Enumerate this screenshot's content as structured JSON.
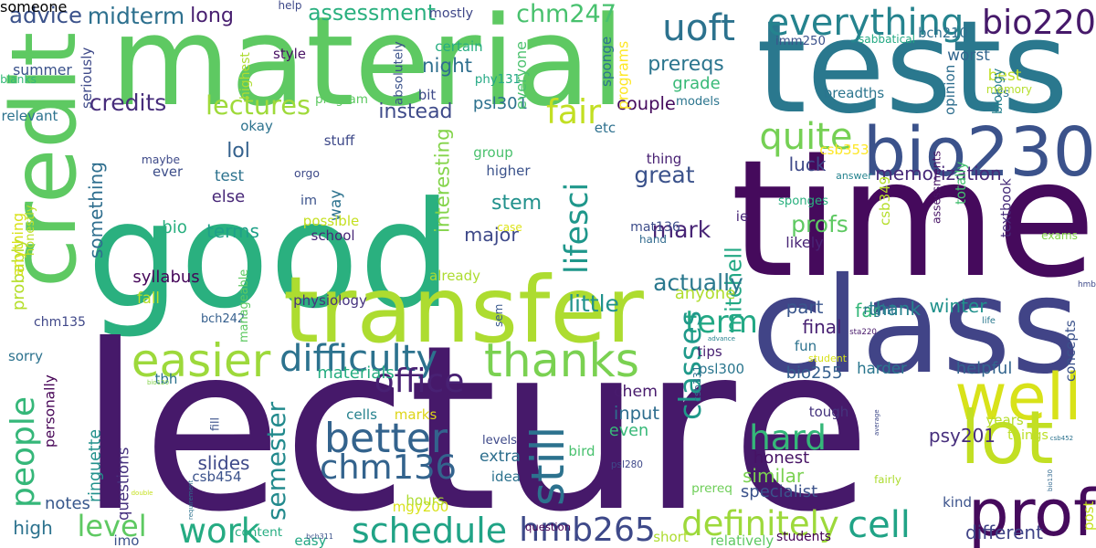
{
  "palette": [
    "#440154",
    "#472d7b",
    "#3b528b",
    "#2c728e",
    "#21918c",
    "#28ae80",
    "#5ec962",
    "#addc30",
    "#fde725"
  ],
  "words": [
    {
      "text": "good",
      "color": "#2ab07f"
    },
    {
      "text": "lecture",
      "color": "#46196a"
    },
    {
      "text": "material",
      "color": "#5ec962"
    },
    {
      "text": "tests",
      "color": "#2a788e"
    },
    {
      "text": "time",
      "color": "#450a5c"
    },
    {
      "text": "credit",
      "color": "#5ec962"
    },
    {
      "text": "class",
      "color": "#414487"
    },
    {
      "text": "transfer",
      "color": "#addc30"
    },
    {
      "text": "bio230",
      "color": "#3b528b"
    },
    {
      "text": "well",
      "color": "#d8e219"
    },
    {
      "text": "lot",
      "color": "#c2df23"
    },
    {
      "text": "prof",
      "color": "#450a5c"
    },
    {
      "text": "easier",
      "color": "#9dd93b"
    },
    {
      "text": "thanks",
      "color": "#7ad151"
    },
    {
      "text": "difficulty",
      "color": "#2c728e"
    },
    {
      "text": "everything",
      "color": "#25838e"
    },
    {
      "text": "uoft",
      "color": "#2c728e"
    },
    {
      "text": "bio220",
      "color": "#46196a"
    },
    {
      "text": "better",
      "color": "#33638d"
    },
    {
      "text": "chm136",
      "color": "#33638d"
    },
    {
      "text": "schedule",
      "color": "#20a386"
    },
    {
      "text": "hmb265",
      "color": "#3e4989"
    },
    {
      "text": "definitely",
      "color": "#9dd93b"
    },
    {
      "text": "work",
      "color": "#25ab82"
    },
    {
      "text": "level",
      "color": "#5ec962"
    },
    {
      "text": "still",
      "color": "#2c728e"
    },
    {
      "text": "quite",
      "color": "#75d054"
    },
    {
      "text": "fair",
      "color": "#c2df23"
    },
    {
      "text": "hard",
      "color": "#35b779"
    },
    {
      "text": "term",
      "color": "#22a884"
    },
    {
      "text": "cell",
      "color": "#20a386"
    },
    {
      "text": "classes",
      "color": "#1f998a"
    },
    {
      "text": "semester",
      "color": "#238a8d"
    },
    {
      "text": "people",
      "color": "#35b779"
    },
    {
      "text": "lifesci",
      "color": "#1f978b"
    },
    {
      "text": "office",
      "color": "#482173"
    },
    {
      "text": "lectures",
      "color": "#9fda3a"
    },
    {
      "text": "assessment",
      "color": "#2ab07f"
    },
    {
      "text": "chm247",
      "color": "#48c16e"
    },
    {
      "text": "advice",
      "color": "#3b528b"
    },
    {
      "text": "midterm",
      "color": "#2d708e"
    },
    {
      "text": "long",
      "color": "#481f70"
    },
    {
      "text": "credits",
      "color": "#472d7b"
    },
    {
      "text": "night",
      "color": "#2e6f8e"
    },
    {
      "text": "instead",
      "color": "#3e4a89"
    },
    {
      "text": "psl301",
      "color": "#2d718e"
    },
    {
      "text": "summer",
      "color": "#3b528b"
    },
    {
      "text": "prereqs",
      "color": "#2b758e"
    },
    {
      "text": "great",
      "color": "#3b528b"
    },
    {
      "text": "profs",
      "color": "#5ec962"
    },
    {
      "text": "mitchell",
      "color": "#22a884"
    },
    {
      "text": "memorization",
      "color": "#482979"
    },
    {
      "text": "winter",
      "color": "#21918c"
    },
    {
      "text": "thank",
      "color": "#26828e"
    },
    {
      "text": "final",
      "color": "#482173"
    },
    {
      "text": "far",
      "color": "#35b779"
    },
    {
      "text": "stem",
      "color": "#21918c"
    },
    {
      "text": "major",
      "color": "#3e4989"
    },
    {
      "text": "mark",
      "color": "#482576"
    },
    {
      "text": "interesting",
      "color": "#84d44b"
    },
    {
      "text": "luck",
      "color": "#3e4989"
    },
    {
      "text": "likely",
      "color": "#482475"
    },
    {
      "text": "little",
      "color": "#20928c"
    },
    {
      "text": "actually",
      "color": "#2a788e"
    },
    {
      "text": "part",
      "color": "#39558c"
    },
    {
      "text": "materials",
      "color": "#26ad81"
    },
    {
      "text": "bio255",
      "color": "#355f8d"
    },
    {
      "text": "similar",
      "color": "#7ad151"
    },
    {
      "text": "specialist",
      "color": "#3b528b"
    },
    {
      "text": "psy201",
      "color": "#472f7d"
    },
    {
      "text": "years",
      "color": "#b5de2b"
    },
    {
      "text": "different",
      "color": "#414487"
    },
    {
      "text": "slides",
      "color": "#3e4989"
    },
    {
      "text": "questions",
      "color": "#46327e"
    },
    {
      "text": "ringuette",
      "color": "#21918c"
    },
    {
      "text": "notes",
      "color": "#38588c"
    },
    {
      "text": "high",
      "color": "#2c728e"
    },
    {
      "text": "easy",
      "color": "#22a884"
    },
    {
      "text": "bio",
      "color": "#29af7f"
    },
    {
      "text": "terms",
      "color": "#1fa188"
    },
    {
      "text": "lol",
      "color": "#34618d"
    },
    {
      "text": "fall",
      "color": "#b8de29"
    },
    {
      "text": "something",
      "color": "#2e6e8e"
    },
    {
      "text": "probably",
      "color": "#b5de2b"
    },
    {
      "text": "way",
      "color": "#2c728e"
    },
    {
      "text": "im",
      "color": "#3b528b"
    },
    {
      "text": "stuff",
      "color": "#3e4989"
    },
    {
      "text": "else",
      "color": "#482878"
    },
    {
      "text": "test",
      "color": "#2c728e"
    },
    {
      "text": "chem",
      "color": "#481b6d"
    },
    {
      "text": "input",
      "color": "#2e6d8e"
    },
    {
      "text": "even",
      "color": "#37b878"
    },
    {
      "text": "honest",
      "color": "#471365"
    },
    {
      "text": "mgy200",
      "color": "#d8e219"
    },
    {
      "text": "harder",
      "color": "#2a768e"
    },
    {
      "text": "helpful",
      "color": "#32648e"
    },
    {
      "text": "anyone",
      "color": "#b0dd2f"
    },
    {
      "text": "csb331",
      "color": "#2c728e"
    },
    {
      "text": "psl300",
      "color": "#2a768e"
    },
    {
      "text": "csb349",
      "color": "#b5de2b"
    },
    {
      "text": "hmb",
      "color": "#3e4989"
    },
    {
      "text": "couple",
      "color": "#460b5e"
    },
    {
      "text": "sponge",
      "color": "#2c728e"
    },
    {
      "text": "grade",
      "color": "#38b977"
    },
    {
      "text": "worst",
      "color": "#31668e"
    },
    {
      "text": "best",
      "color": "#c0df25"
    },
    {
      "text": "physiology",
      "color": "#46337e"
    },
    {
      "text": "syllabus",
      "color": "#46075a"
    },
    {
      "text": "chm135",
      "color": "#3f4788"
    },
    {
      "text": "bch242",
      "color": "#355f8d"
    },
    {
      "text": "maybe",
      "color": "#3e4a89"
    },
    {
      "text": "ever",
      "color": "#3d4e8a"
    },
    {
      "text": "possible",
      "color": "#c5e021"
    },
    {
      "text": "school",
      "color": "#482677"
    },
    {
      "text": "case",
      "color": "#dde318"
    },
    {
      "text": "group",
      "color": "#4ac16d"
    },
    {
      "text": "higher",
      "color": "#3b528b"
    },
    {
      "text": "orgo",
      "color": "#3e4a89"
    },
    {
      "text": "mat136",
      "color": "#3d4d8a"
    },
    {
      "text": "hand",
      "color": "#306a8e"
    },
    {
      "text": "thing",
      "color": "#482173"
    },
    {
      "text": "csb353",
      "color": "#fde725"
    },
    {
      "text": "answer",
      "color": "#25838e"
    },
    {
      "text": "sponges",
      "color": "#2ab07f"
    },
    {
      "text": "ie",
      "color": "#482677"
    },
    {
      "text": "textbook",
      "color": "#472d7b"
    },
    {
      "text": "exams",
      "color": "#84d44b"
    },
    {
      "text": "assessments",
      "color": "#481567"
    },
    {
      "text": "totally",
      "color": "#45bf70"
    },
    {
      "text": "breadths",
      "color": "#2b758e"
    },
    {
      "text": "opinion",
      "color": "#2e6e8e"
    },
    {
      "text": "biology",
      "color": "#26828e"
    },
    {
      "text": "imm250",
      "color": "#3b528b"
    },
    {
      "text": "sabbatical",
      "color": "#23a983"
    },
    {
      "text": "bch210",
      "color": "#2e6f8e"
    },
    {
      "text": "vs",
      "color": "#2c728e"
    },
    {
      "text": "memory",
      "color": "#b5de2b"
    },
    {
      "text": "models",
      "color": "#2b758e"
    },
    {
      "text": "certain",
      "color": "#26ad81"
    },
    {
      "text": "help",
      "color": "#3e4989"
    },
    {
      "text": "mostly",
      "color": "#3f4788"
    },
    {
      "text": "programs",
      "color": "#fde725"
    },
    {
      "text": "everyone",
      "color": "#4ac16d"
    },
    {
      "text": "etc",
      "color": "#2d708e"
    },
    {
      "text": "phy131",
      "color": "#22a884"
    },
    {
      "text": "bit",
      "color": "#3e4989"
    },
    {
      "text": "absolutely",
      "color": "#3b528b"
    },
    {
      "text": "program",
      "color": "#5ec962"
    },
    {
      "text": "style",
      "color": "#471063"
    },
    {
      "text": "highest",
      "color": "#addc30"
    },
    {
      "text": "seriously",
      "color": "#3e4989"
    },
    {
      "text": "blanks",
      "color": "#35b779"
    },
    {
      "text": "relevant",
      "color": "#2c728e"
    },
    {
      "text": "okay",
      "color": "#2c728e"
    },
    {
      "text": "anything",
      "color": "#d8e219"
    },
    {
      "text": "honestly",
      "color": "#bddf26"
    },
    {
      "text": "manageable",
      "color": "#5ec962"
    },
    {
      "text": "already",
      "color": "#addc30"
    },
    {
      "text": "sem",
      "color": "#38588c"
    },
    {
      "text": "sorry",
      "color": "#2c728e"
    },
    {
      "text": "personally",
      "color": "#440154"
    },
    {
      "text": "tbh",
      "color": "#2c728e"
    },
    {
      "text": "bio120",
      "color": "#84d44b"
    },
    {
      "text": "fill",
      "color": "#3b528b"
    },
    {
      "text": "cells",
      "color": "#26828e"
    },
    {
      "text": "marks",
      "color": "#ddd518"
    },
    {
      "text": "levels",
      "color": "#3e4989"
    },
    {
      "text": "extra",
      "color": "#2e6f8e"
    },
    {
      "text": "bird",
      "color": "#48c16e"
    },
    {
      "text": "psl280",
      "color": "#3e4989"
    },
    {
      "text": "idea",
      "color": "#2c728e"
    },
    {
      "text": "tough",
      "color": "#45337d"
    },
    {
      "text": "advance",
      "color": "#26828e"
    },
    {
      "text": "tips",
      "color": "#482173"
    },
    {
      "text": "fun",
      "color": "#2c728e"
    },
    {
      "text": "student",
      "color": "#d8e219"
    },
    {
      "text": "right",
      "color": "#2c728e"
    },
    {
      "text": "sta220",
      "color": "#48196b"
    },
    {
      "text": "life",
      "color": "#2a788e"
    },
    {
      "text": "concepts",
      "color": "#3b528b"
    },
    {
      "text": "average",
      "color": "#3e4989"
    },
    {
      "text": "things",
      "color": "#bddf26"
    },
    {
      "text": "csb452",
      "color": "#2c728e"
    },
    {
      "text": "post",
      "color": "#c5e021"
    },
    {
      "text": "bio130",
      "color": "#31688e"
    },
    {
      "text": "fairly",
      "color": "#addc30"
    },
    {
      "text": "kind",
      "color": "#3b528b"
    },
    {
      "text": "prereq",
      "color": "#6ece58"
    },
    {
      "text": "hours",
      "color": "#addc30"
    },
    {
      "text": "question",
      "color": "#440154"
    },
    {
      "text": "csb454",
      "color": "#3b528b"
    },
    {
      "text": "double",
      "color": "#c5e021"
    },
    {
      "text": "requirement",
      "color": "#2c728e"
    },
    {
      "text": "imo",
      "color": "#3b528b"
    },
    {
      "text": "content",
      "color": "#26ad81"
    },
    {
      "text": "bch311",
      "color": "#3b528b"
    },
    {
      "text": "short",
      "color": "#addc30"
    },
    {
      "text": "relatively",
      "color": "#5ec962"
    },
    {
      "text": "students",
      "color": "#440154"
    },
    {
      "text": "someone",
      "color": "#2c728e"
    }
  ]
}
